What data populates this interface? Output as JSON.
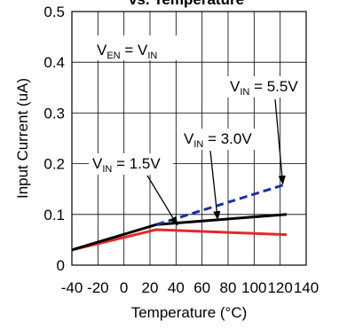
{
  "chart_data": {
    "type": "line",
    "title": "vs. Temperature",
    "xlabel": "Temperature (°C)",
    "ylabel": "Input Current (uA)",
    "xlim": [
      -40,
      140
    ],
    "ylim": [
      0,
      0.5
    ],
    "xticks": [
      "-40",
      "-20",
      "0",
      "20",
      "40",
      "60",
      "80",
      "100",
      "120",
      "140"
    ],
    "xtick_values": [
      -40,
      -20,
      0,
      20,
      40,
      60,
      80,
      100,
      120,
      140
    ],
    "yticks": [
      "0",
      "0.1",
      "0.2",
      "0.3",
      "0.4",
      "0.5"
    ],
    "ytick_values": [
      0,
      0.1,
      0.2,
      0.3,
      0.4,
      0.5
    ],
    "grid": true,
    "series": [
      {
        "name": "VIN = 1.5V",
        "color": "#e8262a",
        "style": "solid",
        "x": [
          -40,
          25,
          125
        ],
        "y": [
          0.03,
          0.07,
          0.06
        ]
      },
      {
        "name": "VIN = 3.0V",
        "color": "#000000",
        "style": "solid",
        "x": [
          -40,
          25,
          125
        ],
        "y": [
          0.03,
          0.08,
          0.1
        ]
      },
      {
        "name": "VIN = 5.5V",
        "color": "#1b2fa8",
        "style": "dashed",
        "x": [
          25,
          125
        ],
        "y": [
          0.08,
          0.16
        ]
      }
    ],
    "annotations": {
      "condition": {
        "v1": "V",
        "s1": "EN",
        "mid": " = V",
        "s2": "IN",
        "tail": ""
      },
      "vin55": {
        "v1": "V",
        "s1": "IN",
        "tail": " = 5.5V",
        "arrow_to": [
          122,
          0.16
        ]
      },
      "vin30": {
        "v1": "V",
        "s1": "IN",
        "tail": " = 3.0V",
        "arrow_to": [
          72,
          0.09
        ]
      },
      "vin15": {
        "v1": "V",
        "s1": "IN",
        "tail": " = 1.5V",
        "arrow_to": [
          41,
          0.079
        ]
      }
    }
  }
}
